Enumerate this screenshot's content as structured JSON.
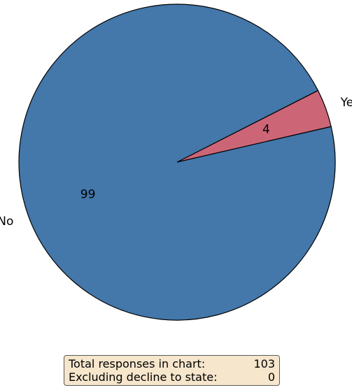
{
  "chart_data": {
    "type": "pie",
    "categories": [
      "No",
      "Yes"
    ],
    "values": [
      99,
      4
    ],
    "colors": [
      "#4477aa",
      "#cc6677"
    ],
    "slice_edge_color": "#000000",
    "start_direction": "counterclockwise from Yes slice near the right side",
    "summary": {
      "total_label": "Total responses in chart:",
      "total_value": "103",
      "excluded_label": "Excluding decline to state:",
      "excluded_value": "0"
    }
  }
}
